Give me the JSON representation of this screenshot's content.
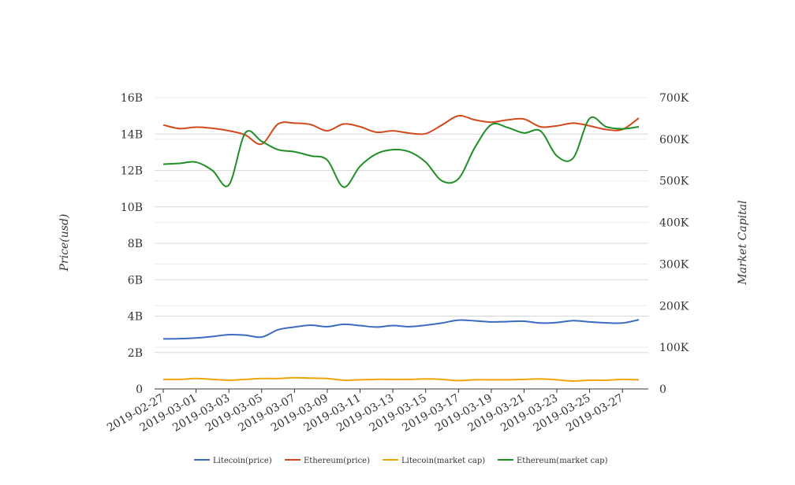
{
  "chart_data": {
    "type": "line",
    "title": "",
    "left_axis": {
      "label": "Price(usd)",
      "ticks": [
        "0",
        "2B",
        "4B",
        "6B",
        "8B",
        "10B",
        "12B",
        "14B",
        "16B"
      ],
      "range": [
        0,
        16
      ]
    },
    "right_axis": {
      "label": "Market Capital",
      "ticks": [
        "0",
        "100K",
        "200K",
        "300K",
        "400K",
        "500K",
        "600K",
        "700K"
      ],
      "range": [
        0,
        700
      ]
    },
    "x_ticks": [
      "2019-02-27",
      "2019-03-01",
      "2019-03-03",
      "2019-03-05",
      "2019-03-07",
      "2019-03-09",
      "2019-03-11",
      "2019-03-13",
      "2019-03-15",
      "2019-03-17",
      "2019-03-19",
      "2019-03-21",
      "2019-03-23",
      "2019-03-25",
      "2019-03-27"
    ],
    "grid": true,
    "legend_position": "bottom",
    "x": [
      "2019-02-27",
      "2019-02-28",
      "2019-03-01",
      "2019-03-02",
      "2019-03-03",
      "2019-03-04",
      "2019-03-05",
      "2019-03-06",
      "2019-03-07",
      "2019-03-08",
      "2019-03-09",
      "2019-03-10",
      "2019-03-11",
      "2019-03-12",
      "2019-03-13",
      "2019-03-14",
      "2019-03-15",
      "2019-03-16",
      "2019-03-17",
      "2019-03-18",
      "2019-03-19",
      "2019-03-20",
      "2019-03-21",
      "2019-03-22",
      "2019-03-23",
      "2019-03-24",
      "2019-03-25",
      "2019-03-26",
      "2019-03-27",
      "2019-03-28"
    ],
    "series": [
      {
        "name": "Litecoin(price)",
        "axis": "left",
        "color": "#3a6bbf",
        "values": [
          2.75,
          2.76,
          2.8,
          2.88,
          2.98,
          2.95,
          2.85,
          3.25,
          3.4,
          3.5,
          3.42,
          3.55,
          3.48,
          3.4,
          3.48,
          3.42,
          3.5,
          3.62,
          3.78,
          3.74,
          3.68,
          3.7,
          3.72,
          3.62,
          3.65,
          3.75,
          3.68,
          3.63,
          3.62,
          3.8
        ]
      },
      {
        "name": "Ethereum(price)",
        "axis": "left",
        "color": "#d04a1e",
        "values": [
          14.5,
          14.3,
          14.38,
          14.32,
          14.18,
          13.95,
          13.45,
          14.55,
          14.6,
          14.52,
          14.18,
          14.55,
          14.4,
          14.1,
          14.18,
          14.05,
          14.02,
          14.5,
          15.0,
          14.78,
          14.65,
          14.78,
          14.82,
          14.4,
          14.45,
          14.6,
          14.45,
          14.25,
          14.25,
          14.88
        ]
      },
      {
        "name": "Litecoin(market cap)",
        "axis": "right",
        "color": "#f0a30a",
        "values": [
          23,
          23,
          25,
          23,
          21,
          23,
          25,
          25,
          27,
          26,
          25,
          21,
          22,
          23,
          23,
          23,
          24,
          23,
          20,
          22,
          22,
          22,
          23,
          24,
          22,
          19,
          21,
          21,
          23,
          22
        ]
      },
      {
        "name": "Ethereum(market cap)",
        "axis": "right",
        "color": "#1f8f25",
        "values": [
          540,
          542,
          545,
          525,
          490,
          615,
          595,
          575,
          570,
          560,
          550,
          485,
          535,
          565,
          575,
          570,
          545,
          500,
          505,
          580,
          635,
          628,
          615,
          620,
          560,
          555,
          650,
          630,
          625,
          630
        ]
      }
    ]
  }
}
